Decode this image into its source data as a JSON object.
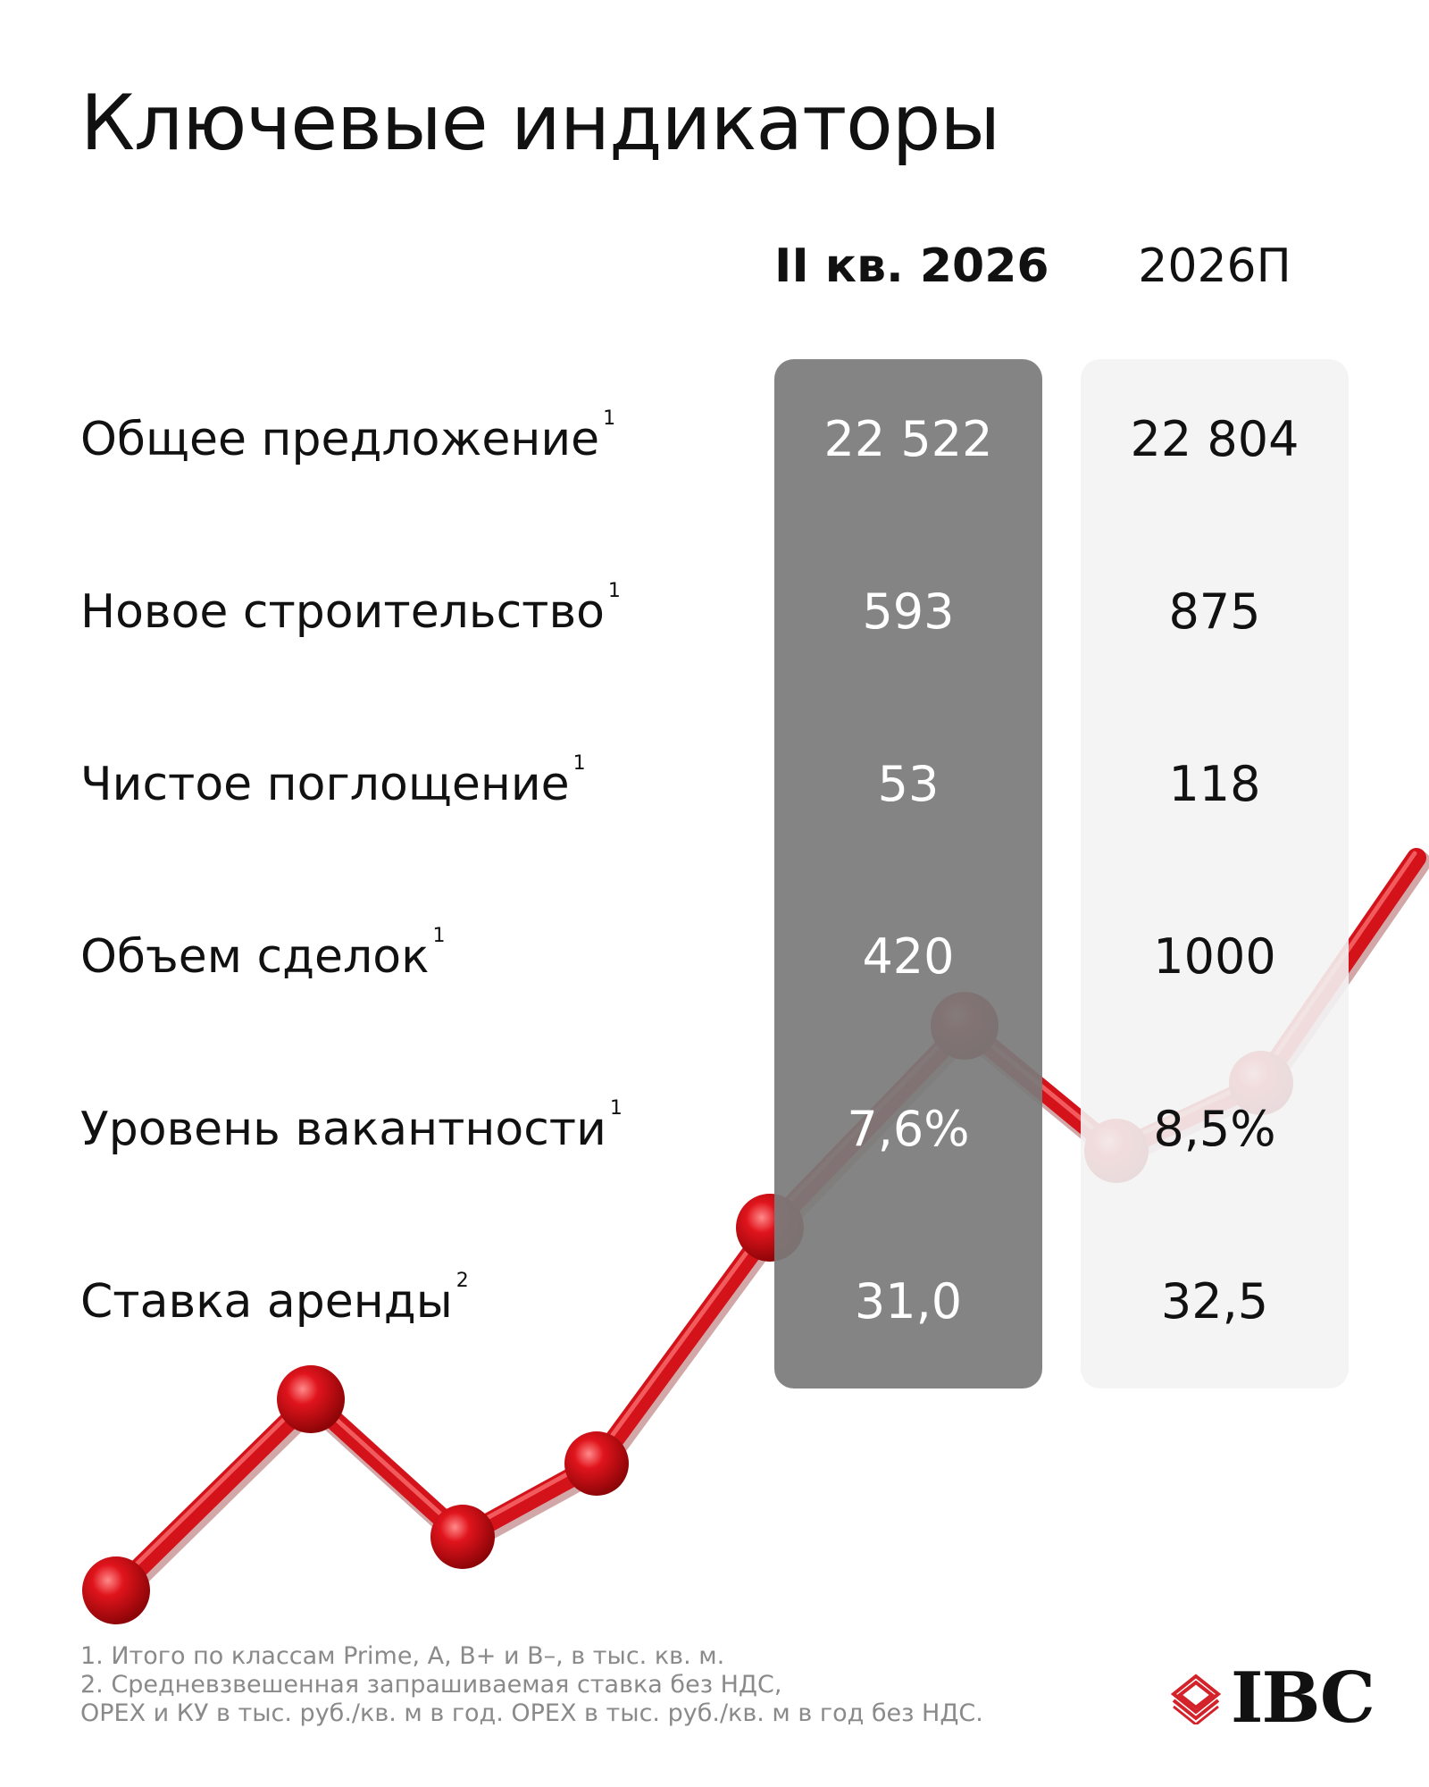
{
  "title": "Ключевые индикаторы",
  "columns": {
    "current": "II кв. 2026",
    "forecast": "2026П"
  },
  "rows": [
    {
      "label": "Общее предложение",
      "note": "1",
      "current": "22 522",
      "forecast": "22 804"
    },
    {
      "label": "Новое строительство",
      "note": "1",
      "current": "593",
      "forecast": "875"
    },
    {
      "label": "Чистое поглощение",
      "note": "1",
      "current": "53",
      "forecast": "118"
    },
    {
      "label": "Объем сделок",
      "note": "1",
      "current": "420",
      "forecast": "1000"
    },
    {
      "label": "Уровень вакантности",
      "note": "1",
      "current": "7,6%",
      "forecast": "8,5%"
    },
    {
      "label": "Ставка аренды",
      "note": "2",
      "current": "31,0",
      "forecast": "32,5"
    }
  ],
  "footnotes": [
    "1. Итого по классам Prime, A, B+ и B–, в тыс. кв. м.",
    "2. Средневзвешенная запрашиваемая ставка без НДС,",
    "OPEX и КУ в тыс. руб./кв. м в год. OPEX в тыс. руб./кв. м в год без НДС."
  ],
  "logo": {
    "text": "IBC",
    "icon": "layered-diamond-icon",
    "color": "#d3222a"
  },
  "decoration": {
    "name": "red-trend-line",
    "color": "#d3121a"
  }
}
